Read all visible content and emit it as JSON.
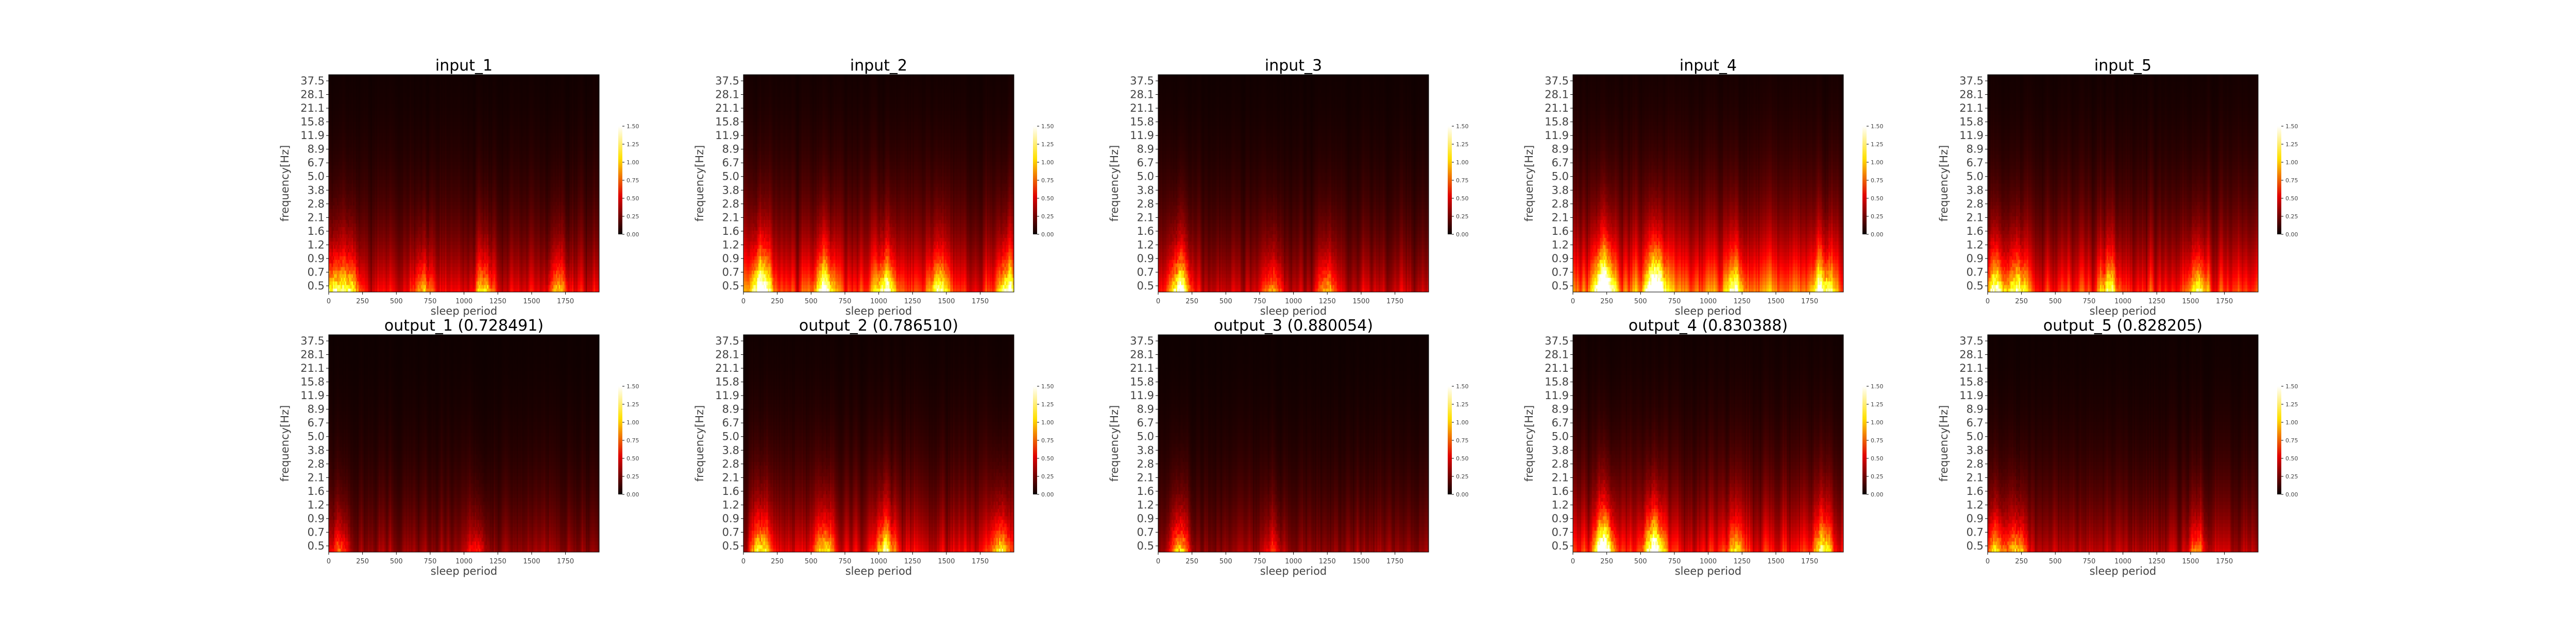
{
  "figure": {
    "colormap": "hot",
    "colors": {
      "background": "#ffffff",
      "axis": "#000000",
      "tick_text": "#444444"
    }
  },
  "chart_data": [
    {
      "type": "heatmap",
      "title": "input_1",
      "xlabel": "sleep period",
      "ylabel": "frequency[Hz]",
      "xticks": [
        0,
        250,
        500,
        750,
        1000,
        1250,
        1500,
        1750
      ],
      "xlim": [
        0,
        1999
      ],
      "yticks": [
        "0.5",
        "0.7",
        "0.9",
        "1.2",
        "1.6",
        "2.1",
        "2.8",
        "3.8",
        "5.0",
        "6.7",
        "8.9",
        "11.9",
        "15.8",
        "21.1",
        "28.1",
        "37.5"
      ],
      "colorbar": {
        "ticks": [
          "0.00",
          "0.25",
          "0.50",
          "0.75",
          "1.00",
          "1.25",
          "1.50"
        ],
        "range": [
          0,
          1.5
        ]
      },
      "intensity": 0.55,
      "peaks": [
        [
          40,
          0.9
        ],
        [
          160,
          0.85
        ],
        [
          700,
          0.6
        ],
        [
          1150,
          0.65
        ],
        [
          1700,
          0.6
        ]
      ],
      "seed": 11
    },
    {
      "type": "heatmap",
      "title": "input_2",
      "xlabel": "sleep period",
      "ylabel": "frequency[Hz]",
      "xticks": [
        0,
        250,
        500,
        750,
        1000,
        1250,
        1500,
        1750
      ],
      "xlim": [
        0,
        1999
      ],
      "yticks": [
        "0.5",
        "0.7",
        "0.9",
        "1.2",
        "1.6",
        "2.1",
        "2.8",
        "3.8",
        "5.0",
        "6.7",
        "8.9",
        "11.9",
        "15.8",
        "21.1",
        "28.1",
        "37.5"
      ],
      "colorbar": {
        "ticks": [
          "0.00",
          "0.25",
          "0.50",
          "0.75",
          "1.00",
          "1.25",
          "1.50"
        ],
        "range": [
          0,
          1.5
        ]
      },
      "intensity": 0.75,
      "peaks": [
        [
          130,
          1.3
        ],
        [
          600,
          0.95
        ],
        [
          1050,
          1.0
        ],
        [
          1450,
          0.85
        ],
        [
          1950,
          0.9
        ]
      ],
      "seed": 23
    },
    {
      "type": "heatmap",
      "title": "input_3",
      "xlabel": "sleep period",
      "ylabel": "frequency[Hz]",
      "xticks": [
        0,
        250,
        500,
        750,
        1000,
        1250,
        1500,
        1750
      ],
      "xlim": [
        0,
        1999
      ],
      "yticks": [
        "0.5",
        "0.7",
        "0.9",
        "1.2",
        "1.6",
        "2.1",
        "2.8",
        "3.8",
        "5.0",
        "6.7",
        "8.9",
        "11.9",
        "15.8",
        "21.1",
        "28.1",
        "37.5"
      ],
      "colorbar": {
        "ticks": [
          "0.00",
          "0.25",
          "0.50",
          "0.75",
          "1.00",
          "1.25",
          "1.50"
        ],
        "range": [
          0,
          1.5
        ]
      },
      "intensity": 0.5,
      "peaks": [
        [
          160,
          1.2
        ],
        [
          850,
          0.55
        ],
        [
          1250,
          0.55
        ]
      ],
      "seed": 37
    },
    {
      "type": "heatmap",
      "title": "input_4",
      "xlabel": "sleep period",
      "ylabel": "frequency[Hz]",
      "xticks": [
        0,
        250,
        500,
        750,
        1000,
        1250,
        1500,
        1750
      ],
      "xlim": [
        0,
        1999
      ],
      "yticks": [
        "0.5",
        "0.7",
        "0.9",
        "1.2",
        "1.6",
        "2.1",
        "2.8",
        "3.8",
        "5.0",
        "6.7",
        "8.9",
        "11.9",
        "15.8",
        "21.1",
        "28.1",
        "37.5"
      ],
      "colorbar": {
        "ticks": [
          "0.00",
          "0.25",
          "0.50",
          "0.75",
          "1.00",
          "1.25",
          "1.50"
        ],
        "range": [
          0,
          1.5
        ]
      },
      "intensity": 0.9,
      "peaks": [
        [
          230,
          1.6
        ],
        [
          610,
          1.55
        ],
        [
          1200,
          0.7
        ],
        [
          1850,
          0.9
        ]
      ],
      "seed": 41
    },
    {
      "type": "heatmap",
      "title": "input_5",
      "xlabel": "sleep period",
      "ylabel": "frequency[Hz]",
      "xticks": [
        0,
        250,
        500,
        750,
        1000,
        1250,
        1500,
        1750
      ],
      "xlim": [
        0,
        1999
      ],
      "yticks": [
        "0.5",
        "0.7",
        "0.9",
        "1.2",
        "1.6",
        "2.1",
        "2.8",
        "3.8",
        "5.0",
        "6.7",
        "8.9",
        "11.9",
        "15.8",
        "21.1",
        "28.1",
        "37.5"
      ],
      "colorbar": {
        "ticks": [
          "0.00",
          "0.25",
          "0.50",
          "0.75",
          "1.00",
          "1.25",
          "1.50"
        ],
        "range": [
          0,
          1.5
        ]
      },
      "intensity": 0.7,
      "peaks": [
        [
          60,
          1.0
        ],
        [
          220,
          0.95
        ],
        [
          900,
          0.7
        ],
        [
          1550,
          0.75
        ]
      ],
      "seed": 53
    },
    {
      "type": "heatmap",
      "title": "output_1 (0.728491)",
      "xlabel": "sleep period",
      "ylabel": "frequency[Hz]",
      "xticks": [
        0,
        250,
        500,
        750,
        1000,
        1250,
        1500,
        1750
      ],
      "xlim": [
        0,
        1999
      ],
      "yticks": [
        "0.5",
        "0.7",
        "0.9",
        "1.2",
        "1.6",
        "2.1",
        "2.8",
        "3.8",
        "5.0",
        "6.7",
        "8.9",
        "11.9",
        "15.8",
        "21.1",
        "28.1",
        "37.5"
      ],
      "colorbar": {
        "ticks": [
          "0.00",
          "0.25",
          "0.50",
          "0.75",
          "1.00",
          "1.25",
          "1.50"
        ],
        "range": [
          0,
          1.5
        ]
      },
      "intensity": 0.35,
      "peaks": [
        [
          80,
          0.5
        ],
        [
          1100,
          0.4
        ]
      ],
      "seed": 67
    },
    {
      "type": "heatmap",
      "title": "output_2 (0.786510)",
      "xlabel": "sleep period",
      "ylabel": "frequency[Hz]",
      "xticks": [
        0,
        250,
        500,
        750,
        1000,
        1250,
        1500,
        1750
      ],
      "xlim": [
        0,
        1999
      ],
      "yticks": [
        "0.5",
        "0.7",
        "0.9",
        "1.2",
        "1.6",
        "2.1",
        "2.8",
        "3.8",
        "5.0",
        "6.7",
        "8.9",
        "11.9",
        "15.8",
        "21.1",
        "28.1",
        "37.5"
      ],
      "colorbar": {
        "ticks": [
          "0.00",
          "0.25",
          "0.50",
          "0.75",
          "1.00",
          "1.25",
          "1.50"
        ],
        "range": [
          0,
          1.5
        ]
      },
      "intensity": 0.55,
      "peaks": [
        [
          130,
          0.85
        ],
        [
          600,
          0.75
        ],
        [
          1050,
          0.85
        ],
        [
          1900,
          0.85
        ]
      ],
      "seed": 71
    },
    {
      "type": "heatmap",
      "title": "output_3 (0.880054)",
      "xlabel": "sleep period",
      "ylabel": "frequency[Hz]",
      "xticks": [
        0,
        250,
        500,
        750,
        1000,
        1250,
        1500,
        1750
      ],
      "xlim": [
        0,
        1999
      ],
      "yticks": [
        "0.5",
        "0.7",
        "0.9",
        "1.2",
        "1.6",
        "2.1",
        "2.8",
        "3.8",
        "5.0",
        "6.7",
        "8.9",
        "11.9",
        "15.8",
        "21.1",
        "28.1",
        "37.5"
      ],
      "colorbar": {
        "ticks": [
          "0.00",
          "0.25",
          "0.50",
          "0.75",
          "1.00",
          "1.25",
          "1.50"
        ],
        "range": [
          0,
          1.5
        ]
      },
      "intensity": 0.35,
      "peaks": [
        [
          160,
          0.85
        ],
        [
          850,
          0.35
        ]
      ],
      "seed": 83
    },
    {
      "type": "heatmap",
      "title": "output_4 (0.830388)",
      "xlabel": "sleep period",
      "ylabel": "frequency[Hz]",
      "xticks": [
        0,
        250,
        500,
        750,
        1000,
        1250,
        1500,
        1750
      ],
      "xlim": [
        0,
        1999
      ],
      "yticks": [
        "0.5",
        "0.7",
        "0.9",
        "1.2",
        "1.6",
        "2.1",
        "2.8",
        "3.8",
        "5.0",
        "6.7",
        "8.9",
        "11.9",
        "15.8",
        "21.1",
        "28.1",
        "37.5"
      ],
      "colorbar": {
        "ticks": [
          "0.00",
          "0.25",
          "0.50",
          "0.75",
          "1.00",
          "1.25",
          "1.50"
        ],
        "range": [
          0,
          1.5
        ]
      },
      "intensity": 0.65,
      "peaks": [
        [
          230,
          1.5
        ],
        [
          600,
          1.35
        ],
        [
          1200,
          0.55
        ],
        [
          1850,
          0.8
        ]
      ],
      "seed": 97
    },
    {
      "type": "heatmap",
      "title": "output_5 (0.828205)",
      "xlabel": "sleep period",
      "ylabel": "frequency[Hz]",
      "xticks": [
        0,
        250,
        500,
        750,
        1000,
        1250,
        1500,
        1750
      ],
      "xlim": [
        0,
        1999
      ],
      "yticks": [
        "0.5",
        "0.7",
        "0.9",
        "1.2",
        "1.6",
        "2.1",
        "2.8",
        "3.8",
        "5.0",
        "6.7",
        "8.9",
        "11.9",
        "15.8",
        "21.1",
        "28.1",
        "37.5"
      ],
      "colorbar": {
        "ticks": [
          "0.00",
          "0.25",
          "0.50",
          "0.75",
          "1.00",
          "1.25",
          "1.50"
        ],
        "range": [
          0,
          1.5
        ]
      },
      "intensity": 0.45,
      "peaks": [
        [
          60,
          0.75
        ],
        [
          220,
          0.8
        ],
        [
          1550,
          0.45
        ]
      ],
      "seed": 101
    }
  ]
}
